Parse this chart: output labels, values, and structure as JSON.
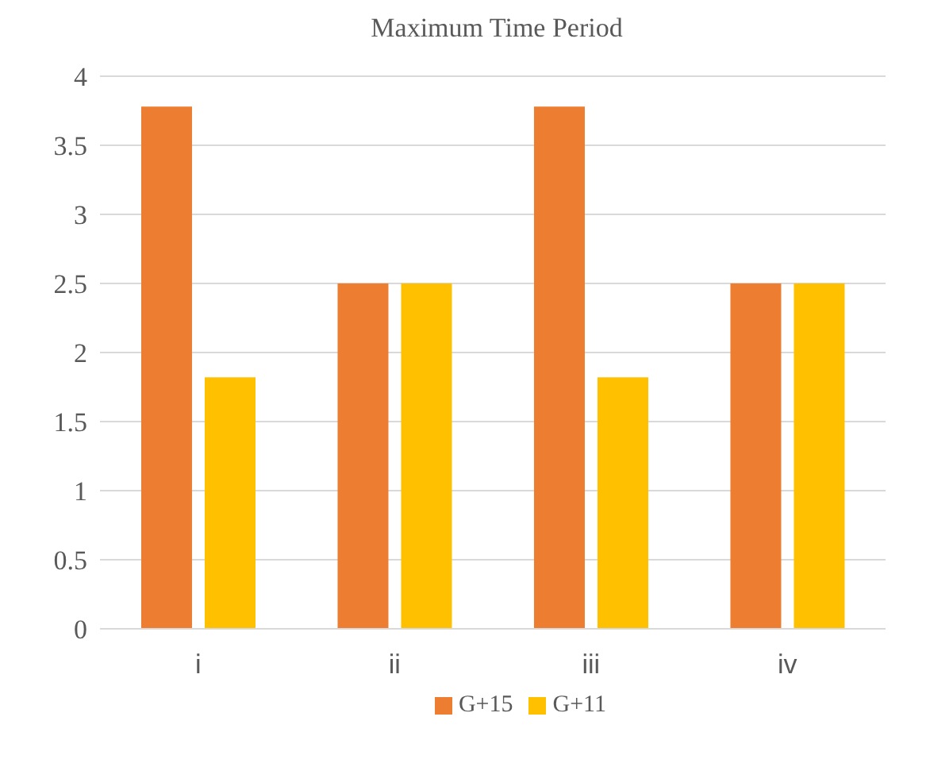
{
  "chart_data": {
    "type": "bar",
    "title": "Maximum Time Period",
    "categories": [
      "i",
      "ii",
      "iii",
      "iv"
    ],
    "series": [
      {
        "name": "G+15",
        "color": "#ed7d31",
        "values": [
          3.78,
          2.5,
          3.78,
          2.5
        ]
      },
      {
        "name": "G+11",
        "color": "#ffc000",
        "values": [
          1.82,
          2.5,
          1.82,
          2.5
        ]
      }
    ],
    "ylim": [
      0,
      4
    ],
    "yticks": [
      0,
      0.5,
      1,
      1.5,
      2,
      2.5,
      3,
      3.5,
      4
    ],
    "grid": "y",
    "legend": "bottom"
  }
}
